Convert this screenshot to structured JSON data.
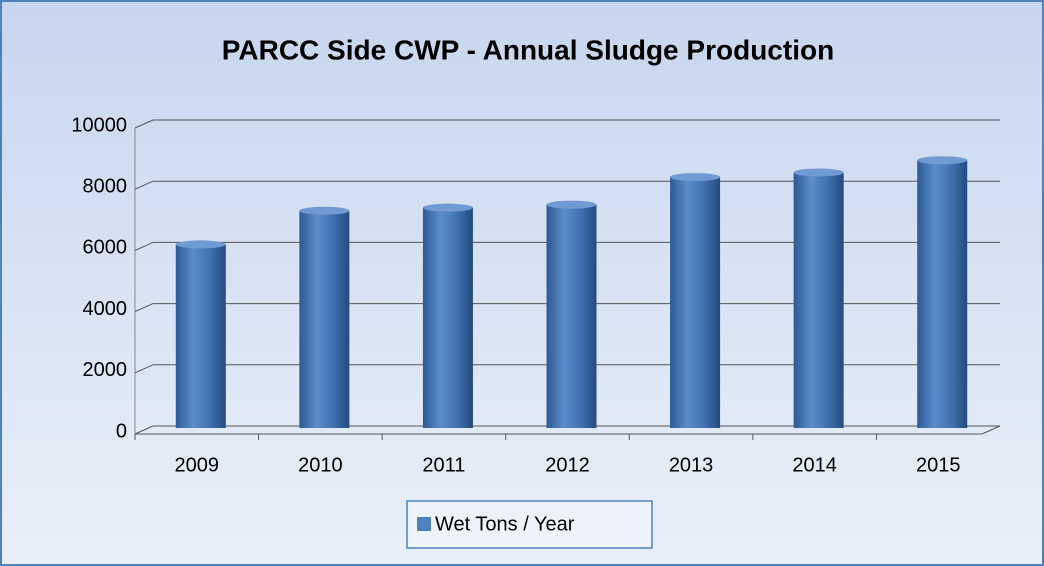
{
  "chart_data": {
    "type": "bar",
    "title": "PARCC Side CWP - Annual Sludge Production",
    "categories": [
      "2009",
      "2010",
      "2011",
      "2012",
      "2013",
      "2014",
      "2015"
    ],
    "series": [
      {
        "name": "Wet Tons / Year",
        "color": "#4f81bd",
        "values": [
          6000,
          7100,
          7200,
          7300,
          8200,
          8350,
          8750
        ]
      }
    ],
    "ylim": [
      0,
      10000
    ],
    "yticks": [
      0,
      2000,
      4000,
      6000,
      8000,
      10000
    ],
    "grid": true,
    "legend": "bottom"
  }
}
